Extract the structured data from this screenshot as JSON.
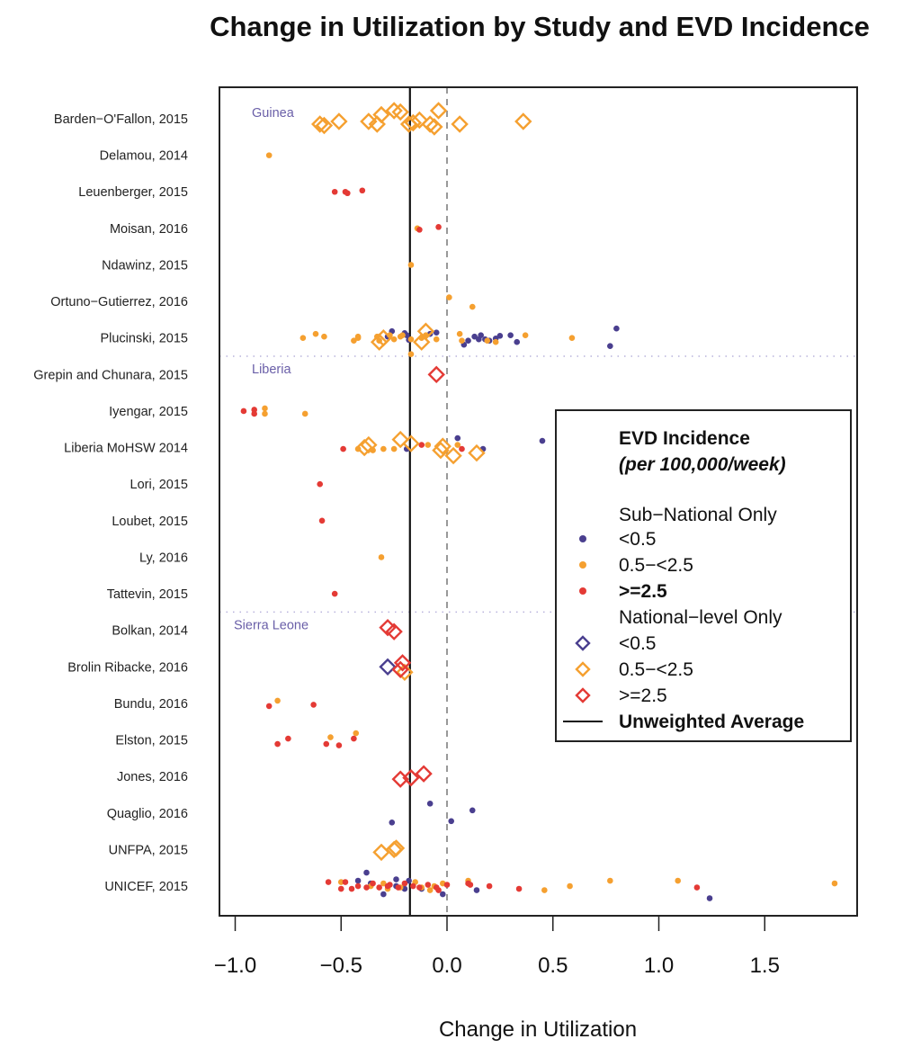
{
  "chart_data": {
    "type": "scatter",
    "title": "Change in Utilization by Study and EVD Incidence",
    "xlabel": "Change in Utilization",
    "ylabel": "",
    "xlim": [
      -1.07,
      1.94
    ],
    "xticks": [
      -1.0,
      -0.5,
      0.0,
      0.5,
      1.0,
      1.5
    ],
    "xtick_labels": [
      "−1.0",
      "−0.5",
      "0.0",
      "0.5",
      "1.0",
      "1.5"
    ],
    "reference_line": 0.0,
    "unweighted_average": -0.175,
    "studies": [
      "Barden−O'Fallon, 2015",
      "Delamou, 2014",
      "Leuenberger, 2015",
      "Moisan, 2016",
      "Ndawinz, 2015",
      "Ortuno−Gutierrez, 2016",
      "Plucinski, 2015",
      "Grepin and Chunara, 2015",
      "Iyengar, 2015",
      "Liberia MoHSW 2014",
      "Lori, 2015",
      "Loubet, 2015",
      "Ly, 2016",
      "Tattevin, 2015",
      "Bolkan, 2014",
      "Brolin Ribacke, 2016",
      "Bundu, 2016",
      "Elston, 2015",
      "Jones, 2016",
      "Quaglio, 2016",
      "UNFPA, 2015",
      "UNICEF, 2015"
    ],
    "regions": [
      {
        "name": "Guinea",
        "first_study": 0
      },
      {
        "name": "Liberia",
        "first_study": 7
      },
      {
        "name": "Sierra Leone",
        "first_study": 14
      }
    ],
    "legend": {
      "title": "EVD Incidence",
      "subtitle": "(per 100,000/week)",
      "position": "right",
      "group1": "Sub−National Only",
      "group2": "National−level Only",
      "items": [
        {
          "marker": "dot",
          "cat": "low",
          "label": "<0.5",
          "bold": false
        },
        {
          "marker": "dot",
          "cat": "mid",
          "label": "0.5−<2.5",
          "bold": false
        },
        {
          "marker": "dot",
          "cat": "high",
          "label": ">=2.5",
          "bold": true
        },
        {
          "marker": "diamond",
          "cat": "low",
          "label": "<0.5",
          "bold": false
        },
        {
          "marker": "diamond",
          "cat": "mid",
          "label": "0.5−<2.5",
          "bold": false
        },
        {
          "marker": "diamond",
          "cat": "high",
          "label": ">=2.5",
          "bold": false
        }
      ],
      "line_label": "Unweighted  Average"
    },
    "colors": {
      "low": "#4a3f8f",
      "mid": "#f5a030",
      "high": "#e43a35",
      "region": "#6a5fa8"
    },
    "series": [
      {
        "name": "Sub-National <0.5",
        "marker": "dot",
        "cat": "low",
        "points": [
          [
            6,
            -0.28,
            -0.05
          ],
          [
            6,
            -0.19,
            -0.1
          ],
          [
            6,
            -0.08,
            -0.15
          ],
          [
            6,
            -0.18,
            0.07
          ],
          [
            6,
            0.08,
            0.25
          ],
          [
            6,
            0.1,
            0.1
          ],
          [
            6,
            0.13,
            -0.05
          ],
          [
            6,
            0.15,
            0.05
          ],
          [
            6,
            0.16,
            -0.1
          ],
          [
            6,
            0.18,
            0.05
          ],
          [
            6,
            0.2,
            0.1
          ],
          [
            6,
            0.23,
            0.02
          ],
          [
            6,
            0.25,
            -0.08
          ],
          [
            6,
            0.3,
            -0.1
          ],
          [
            6,
            0.33,
            0.15
          ],
          [
            6,
            0.77,
            0.3
          ],
          [
            6,
            0.8,
            -0.35
          ],
          [
            6,
            -0.26,
            -0.25
          ],
          [
            6,
            -0.2,
            -0.18
          ],
          [
            6,
            -0.05,
            -0.2
          ],
          [
            9,
            -0.19,
            0.05
          ],
          [
            9,
            0.05,
            -0.35
          ],
          [
            9,
            0.17,
            0.05
          ],
          [
            9,
            0.45,
            -0.25
          ],
          [
            19,
            -0.26,
            0.35
          ],
          [
            19,
            0.02,
            0.3
          ],
          [
            19,
            0.12,
            -0.1
          ],
          [
            19,
            -0.08,
            -0.35
          ],
          [
            21,
            -0.42,
            -0.2
          ],
          [
            21,
            -0.38,
            -0.5
          ],
          [
            21,
            -0.3,
            0.3
          ],
          [
            21,
            -0.24,
            0.0
          ],
          [
            21,
            -0.18,
            -0.2
          ],
          [
            21,
            -0.12,
            0.1
          ],
          [
            21,
            -0.24,
            -0.25
          ],
          [
            21,
            -0.02,
            0.3
          ],
          [
            21,
            0.14,
            0.15
          ],
          [
            21,
            1.24,
            0.45
          ],
          [
            21,
            -0.36,
            -0.1
          ],
          [
            21,
            -0.2,
            0.1
          ]
        ]
      },
      {
        "name": "Sub-National 0.5-<2.5",
        "marker": "dot",
        "cat": "mid",
        "points": [
          [
            1,
            -0.84,
            0.0
          ],
          [
            3,
            -0.14,
            0.0
          ],
          [
            4,
            -0.17,
            0.0
          ],
          [
            5,
            0.12,
            0.2
          ],
          [
            5,
            0.01,
            -0.15
          ],
          [
            6,
            -0.17,
            0.6
          ],
          [
            6,
            0.07,
            0.1
          ],
          [
            6,
            0.19,
            0.1
          ],
          [
            6,
            0.23,
            0.15
          ],
          [
            6,
            0.59,
            0.0
          ],
          [
            6,
            0.37,
            -0.1
          ],
          [
            6,
            0.06,
            -0.15
          ],
          [
            6,
            -0.68,
            0.0
          ],
          [
            6,
            -0.62,
            -0.15
          ],
          [
            6,
            -0.58,
            -0.05
          ],
          [
            6,
            -0.44,
            0.1
          ],
          [
            6,
            -0.42,
            0.0
          ],
          [
            6,
            -0.42,
            -0.05
          ],
          [
            6,
            -0.33,
            -0.05
          ],
          [
            6,
            -0.32,
            0.1
          ],
          [
            6,
            -0.27,
            -0.1
          ],
          [
            6,
            -0.25,
            0.05
          ],
          [
            6,
            -0.22,
            -0.05
          ],
          [
            6,
            -0.21,
            -0.1
          ],
          [
            6,
            -0.17,
            0.05
          ],
          [
            6,
            -0.12,
            0.0
          ],
          [
            6,
            -0.1,
            -0.1
          ],
          [
            6,
            -0.05,
            0.05
          ],
          [
            8,
            -0.86,
            0.1
          ],
          [
            8,
            -0.86,
            -0.1
          ],
          [
            8,
            -0.67,
            0.1
          ],
          [
            9,
            -0.42,
            0.05
          ],
          [
            9,
            -0.35,
            0.1
          ],
          [
            9,
            -0.3,
            0.05
          ],
          [
            9,
            -0.25,
            0.05
          ],
          [
            9,
            -0.09,
            -0.1
          ],
          [
            9,
            0.05,
            -0.1
          ],
          [
            12,
            -0.31,
            0.0
          ],
          [
            16,
            -0.8,
            -0.1
          ],
          [
            17,
            -0.55,
            -0.1
          ],
          [
            17,
            -0.43,
            -0.25
          ],
          [
            21,
            -0.5,
            -0.15
          ],
          [
            21,
            -0.36,
            0.0
          ],
          [
            21,
            -0.3,
            -0.1
          ],
          [
            21,
            -0.22,
            0.05
          ],
          [
            21,
            -0.12,
            0.05
          ],
          [
            21,
            -0.08,
            0.15
          ],
          [
            21,
            -0.06,
            0.0
          ],
          [
            21,
            -0.02,
            -0.1
          ],
          [
            21,
            0.46,
            0.15
          ],
          [
            21,
            0.58,
            0.0
          ],
          [
            21,
            0.77,
            -0.2
          ],
          [
            21,
            1.09,
            -0.2
          ],
          [
            21,
            1.83,
            -0.1
          ],
          [
            21,
            0.1,
            -0.2
          ],
          [
            21,
            -0.28,
            0.1
          ],
          [
            21,
            -0.15,
            -0.15
          ]
        ]
      },
      {
        "name": "Sub-National >=2.5",
        "marker": "dot",
        "cat": "high",
        "points": [
          [
            2,
            -0.53,
            0.0
          ],
          [
            2,
            -0.47,
            0.05
          ],
          [
            2,
            -0.48,
            0.0
          ],
          [
            2,
            -0.4,
            -0.05
          ],
          [
            3,
            -0.13,
            0.05
          ],
          [
            3,
            -0.04,
            -0.05
          ],
          [
            8,
            -0.96,
            0.0
          ],
          [
            8,
            -0.91,
            0.1
          ],
          [
            8,
            -0.91,
            -0.05
          ],
          [
            9,
            -0.49,
            0.05
          ],
          [
            9,
            -0.12,
            -0.1
          ],
          [
            9,
            0.07,
            0.05
          ],
          [
            10,
            -0.6,
            0.0
          ],
          [
            11,
            -0.59,
            0.0
          ],
          [
            13,
            -0.53,
            0.0
          ],
          [
            16,
            -0.84,
            0.1
          ],
          [
            16,
            -0.63,
            0.05
          ],
          [
            17,
            -0.8,
            0.15
          ],
          [
            17,
            -0.75,
            -0.05
          ],
          [
            17,
            -0.57,
            0.15
          ],
          [
            17,
            -0.51,
            0.2
          ],
          [
            17,
            -0.44,
            -0.05
          ],
          [
            21,
            -0.56,
            -0.15
          ],
          [
            21,
            -0.5,
            0.1
          ],
          [
            21,
            -0.48,
            -0.15
          ],
          [
            21,
            -0.42,
            0.0
          ],
          [
            21,
            -0.38,
            0.05
          ],
          [
            21,
            -0.35,
            -0.1
          ],
          [
            21,
            -0.32,
            0.05
          ],
          [
            21,
            -0.27,
            -0.05
          ],
          [
            21,
            -0.23,
            0.05
          ],
          [
            21,
            -0.2,
            -0.1
          ],
          [
            21,
            -0.16,
            0.0
          ],
          [
            21,
            -0.13,
            0.05
          ],
          [
            21,
            -0.09,
            -0.05
          ],
          [
            21,
            -0.04,
            0.15
          ],
          [
            21,
            0.0,
            -0.05
          ],
          [
            21,
            0.1,
            -0.1
          ],
          [
            21,
            0.11,
            -0.05
          ],
          [
            21,
            0.2,
            0.0
          ],
          [
            21,
            0.34,
            0.1
          ],
          [
            21,
            1.18,
            0.05
          ],
          [
            21,
            -0.45,
            0.1
          ],
          [
            21,
            -0.28,
            0.0
          ],
          [
            21,
            -0.05,
            0.05
          ]
        ]
      },
      {
        "name": "National <0.5",
        "marker": "diamond",
        "cat": "low",
        "points": [
          [
            15,
            -0.28,
            0.0
          ]
        ]
      },
      {
        "name": "National 0.5-<2.5",
        "marker": "diamond",
        "cat": "mid",
        "points": [
          [
            0,
            -0.6,
            0.2
          ],
          [
            0,
            -0.58,
            0.25
          ],
          [
            0,
            -0.51,
            0.1
          ],
          [
            0,
            -0.37,
            0.1
          ],
          [
            0,
            -0.33,
            0.2
          ],
          [
            0,
            -0.31,
            -0.15
          ],
          [
            0,
            -0.25,
            -0.3
          ],
          [
            0,
            -0.22,
            -0.25
          ],
          [
            0,
            -0.18,
            0.2
          ],
          [
            0,
            -0.16,
            0.15
          ],
          [
            0,
            -0.13,
            0.05
          ],
          [
            0,
            -0.08,
            0.2
          ],
          [
            0,
            -0.06,
            0.3
          ],
          [
            0,
            -0.04,
            -0.3
          ],
          [
            0,
            0.06,
            0.2
          ],
          [
            0,
            0.36,
            0.1
          ],
          [
            6,
            -0.32,
            0.15
          ],
          [
            6,
            -0.3,
            0.0
          ],
          [
            6,
            -0.12,
            0.15
          ],
          [
            6,
            -0.1,
            -0.25
          ],
          [
            9,
            -0.39,
            0.0
          ],
          [
            9,
            -0.37,
            -0.1
          ],
          [
            9,
            -0.22,
            -0.3
          ],
          [
            9,
            -0.17,
            -0.15
          ],
          [
            9,
            -0.03,
            0.1
          ],
          [
            9,
            -0.02,
            -0.05
          ],
          [
            9,
            0.03,
            0.3
          ],
          [
            9,
            0.14,
            0.2
          ],
          [
            15,
            -0.2,
            0.2
          ],
          [
            20,
            -0.31,
            0.1
          ],
          [
            20,
            -0.25,
            0.0
          ],
          [
            20,
            -0.24,
            -0.05
          ]
        ]
      },
      {
        "name": "National >=2.5",
        "marker": "diamond",
        "cat": "high",
        "points": [
          [
            7,
            -0.05,
            0.0
          ],
          [
            14,
            -0.28,
            -0.1
          ],
          [
            14,
            -0.25,
            0.05
          ],
          [
            15,
            -0.22,
            0.1
          ],
          [
            15,
            -0.21,
            -0.15
          ],
          [
            18,
            -0.22,
            0.1
          ],
          [
            18,
            -0.17,
            0.05
          ],
          [
            18,
            -0.11,
            -0.1
          ]
        ]
      }
    ]
  }
}
